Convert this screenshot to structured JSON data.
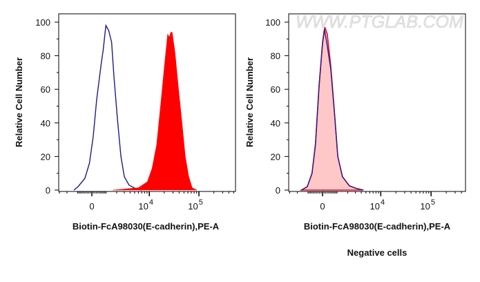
{
  "chart_data": [
    {
      "type": "area",
      "ylabel": "Relative Cell Number",
      "xlabel": "Biotin-FcA98030(E-cadherin),PE-A",
      "x_scale": "biexponential",
      "xlim": [
        -3100,
        540000
      ],
      "ylim": [
        0,
        100
      ],
      "yticks": [
        "0",
        "20",
        "40",
        "60",
        "80",
        "100"
      ],
      "xticks": [
        {
          "value": 0,
          "base": "0",
          "exp": ""
        },
        {
          "value": 10000,
          "base": "10",
          "exp": "4"
        },
        {
          "value": 100000,
          "base": "10",
          "exp": "5"
        }
      ],
      "grid": false,
      "series": [
        {
          "style": "line",
          "color": "#1a1a8c",
          "points": [
            [
              -1310,
              0
            ],
            [
              -960,
              2
            ],
            [
              -460,
              7
            ],
            [
              -158,
              16
            ],
            [
              90,
              32
            ],
            [
              316,
              54
            ],
            [
              640,
              76
            ],
            [
              765,
              83
            ],
            [
              980,
              98
            ],
            [
              1210,
              95
            ],
            [
              1475,
              88
            ],
            [
              1710,
              67
            ],
            [
              2090,
              42
            ],
            [
              2520,
              20
            ],
            [
              3000,
              8
            ],
            [
              3800,
              3
            ],
            [
              5310,
              0.8
            ],
            [
              6950,
              0
            ]
          ]
        },
        {
          "style": "filled",
          "color": "#ff0000",
          "points": [
            [
              1590,
              0
            ],
            [
              5980,
              1.4
            ],
            [
              9150,
              5
            ],
            [
              11400,
              13
            ],
            [
              14100,
              27
            ],
            [
              17400,
              54
            ],
            [
              20400,
              75
            ],
            [
              23500,
              93
            ],
            [
              25300,
              91
            ],
            [
              27200,
              94
            ],
            [
              29000,
              94
            ],
            [
              33000,
              82
            ],
            [
              38700,
              61
            ],
            [
              45400,
              41
            ],
            [
              53200,
              20
            ],
            [
              62500,
              8
            ],
            [
              73300,
              1.4
            ],
            [
              90800,
              0
            ]
          ]
        }
      ]
    },
    {
      "type": "area",
      "ylabel": "Relative Cell Number",
      "xlabel": "Biotin-FcA98030(E-cadherin),PE-A",
      "caption": "Negative cells",
      "watermark": "WWW.PTGLAB.COM",
      "x_scale": "biexponential",
      "xlim": [
        -3100,
        540000
      ],
      "ylim": [
        0,
        100
      ],
      "yticks": [
        "0",
        "20",
        "40",
        "60",
        "80",
        "100"
      ],
      "xticks": [
        {
          "value": 0,
          "base": "0",
          "exp": ""
        },
        {
          "value": 10000,
          "base": "10",
          "exp": "4"
        },
        {
          "value": 100000,
          "base": "10",
          "exp": "5"
        }
      ],
      "grid": false,
      "series": [
        {
          "style": "filled",
          "color": "#ffc8c8",
          "line_color": "#e0102a",
          "points": [
            [
              -1570,
              0
            ],
            [
              -1060,
              2
            ],
            [
              -700,
              10
            ],
            [
              -460,
              27
            ],
            [
              -225,
              61
            ],
            [
              0,
              87
            ],
            [
              149,
              97
            ],
            [
              304,
              93
            ],
            [
              540,
              74
            ],
            [
              790,
              48
            ],
            [
              1060,
              20
            ],
            [
              1460,
              8
            ],
            [
              2190,
              2.5
            ],
            [
              3150,
              1
            ],
            [
              4430,
              0
            ]
          ]
        },
        {
          "style": "line",
          "color": "#2a1a8c",
          "points": [
            [
              -1570,
              0
            ],
            [
              -1060,
              2
            ],
            [
              -700,
              10
            ],
            [
              -460,
              28
            ],
            [
              -225,
              62
            ],
            [
              0,
              88
            ],
            [
              120,
              96
            ],
            [
              304,
              86
            ],
            [
              540,
              72
            ],
            [
              790,
              47
            ],
            [
              1060,
              20
            ],
            [
              1460,
              8
            ],
            [
              2190,
              2.5
            ],
            [
              3150,
              1
            ],
            [
              4430,
              0
            ]
          ]
        }
      ]
    }
  ]
}
